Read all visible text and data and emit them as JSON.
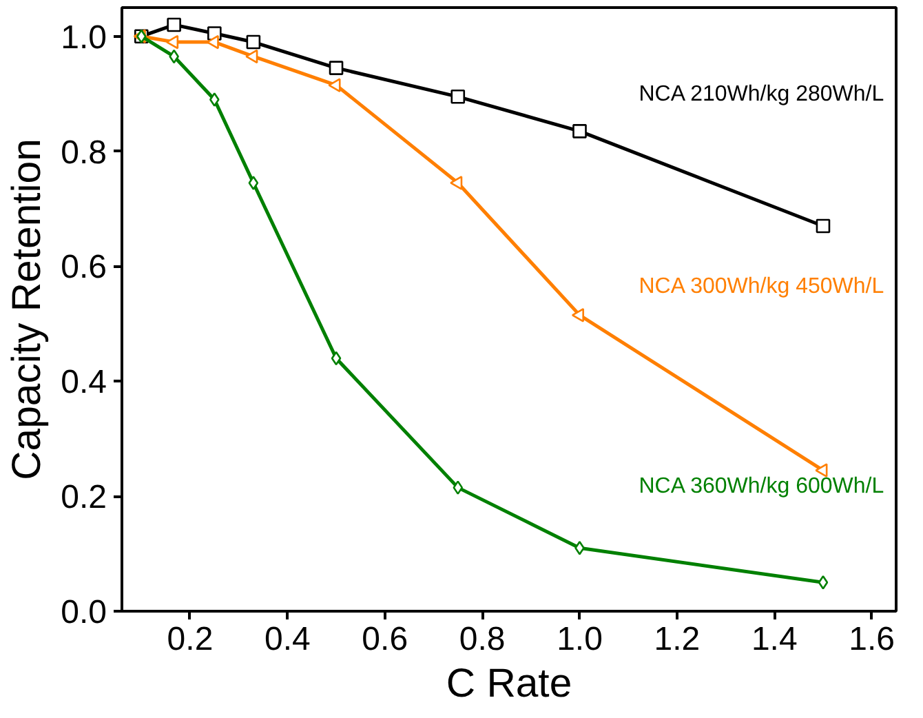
{
  "chart_data": {
    "type": "line",
    "xlabel": "C Rate",
    "ylabel": "Capacity Retention",
    "x": [
      0.1,
      0.167,
      0.25,
      0.33,
      0.5,
      0.75,
      1.0,
      1.5
    ],
    "series": [
      {
        "name": "NCA 210Wh/kg 280Wh/L",
        "color": "#000000",
        "marker": "square",
        "values": [
          1.0,
          1.02,
          1.005,
          0.99,
          0.945,
          0.895,
          0.835,
          0.67
        ]
      },
      {
        "name": "NCA 300Wh/kg 450Wh/L",
        "color": "#ff7f00",
        "marker": "triangle",
        "values": [
          1.0,
          0.99,
          0.99,
          0.965,
          0.915,
          0.745,
          0.515,
          0.245
        ]
      },
      {
        "name": "NCA 360Wh/kg 600Wh/L",
        "color": "#008000",
        "marker": "diamond",
        "values": [
          1.0,
          0.965,
          0.89,
          0.745,
          0.44,
          0.215,
          0.11,
          0.05
        ]
      }
    ],
    "xlim": [
      0.06,
      1.65
    ],
    "ylim": [
      0.0,
      1.05
    ],
    "xticks": [
      0.2,
      0.4,
      0.6,
      0.8,
      {
        "value": 1.0,
        "label": "1.0"
      },
      1.2,
      1.4,
      1.6
    ],
    "yticks": [
      {
        "value": 0.0,
        "label": "0.0"
      },
      0.2,
      0.4,
      0.6,
      0.8,
      {
        "value": 1.0,
        "label": "1.0"
      }
    ],
    "grid": false,
    "line_style": "solid"
  }
}
